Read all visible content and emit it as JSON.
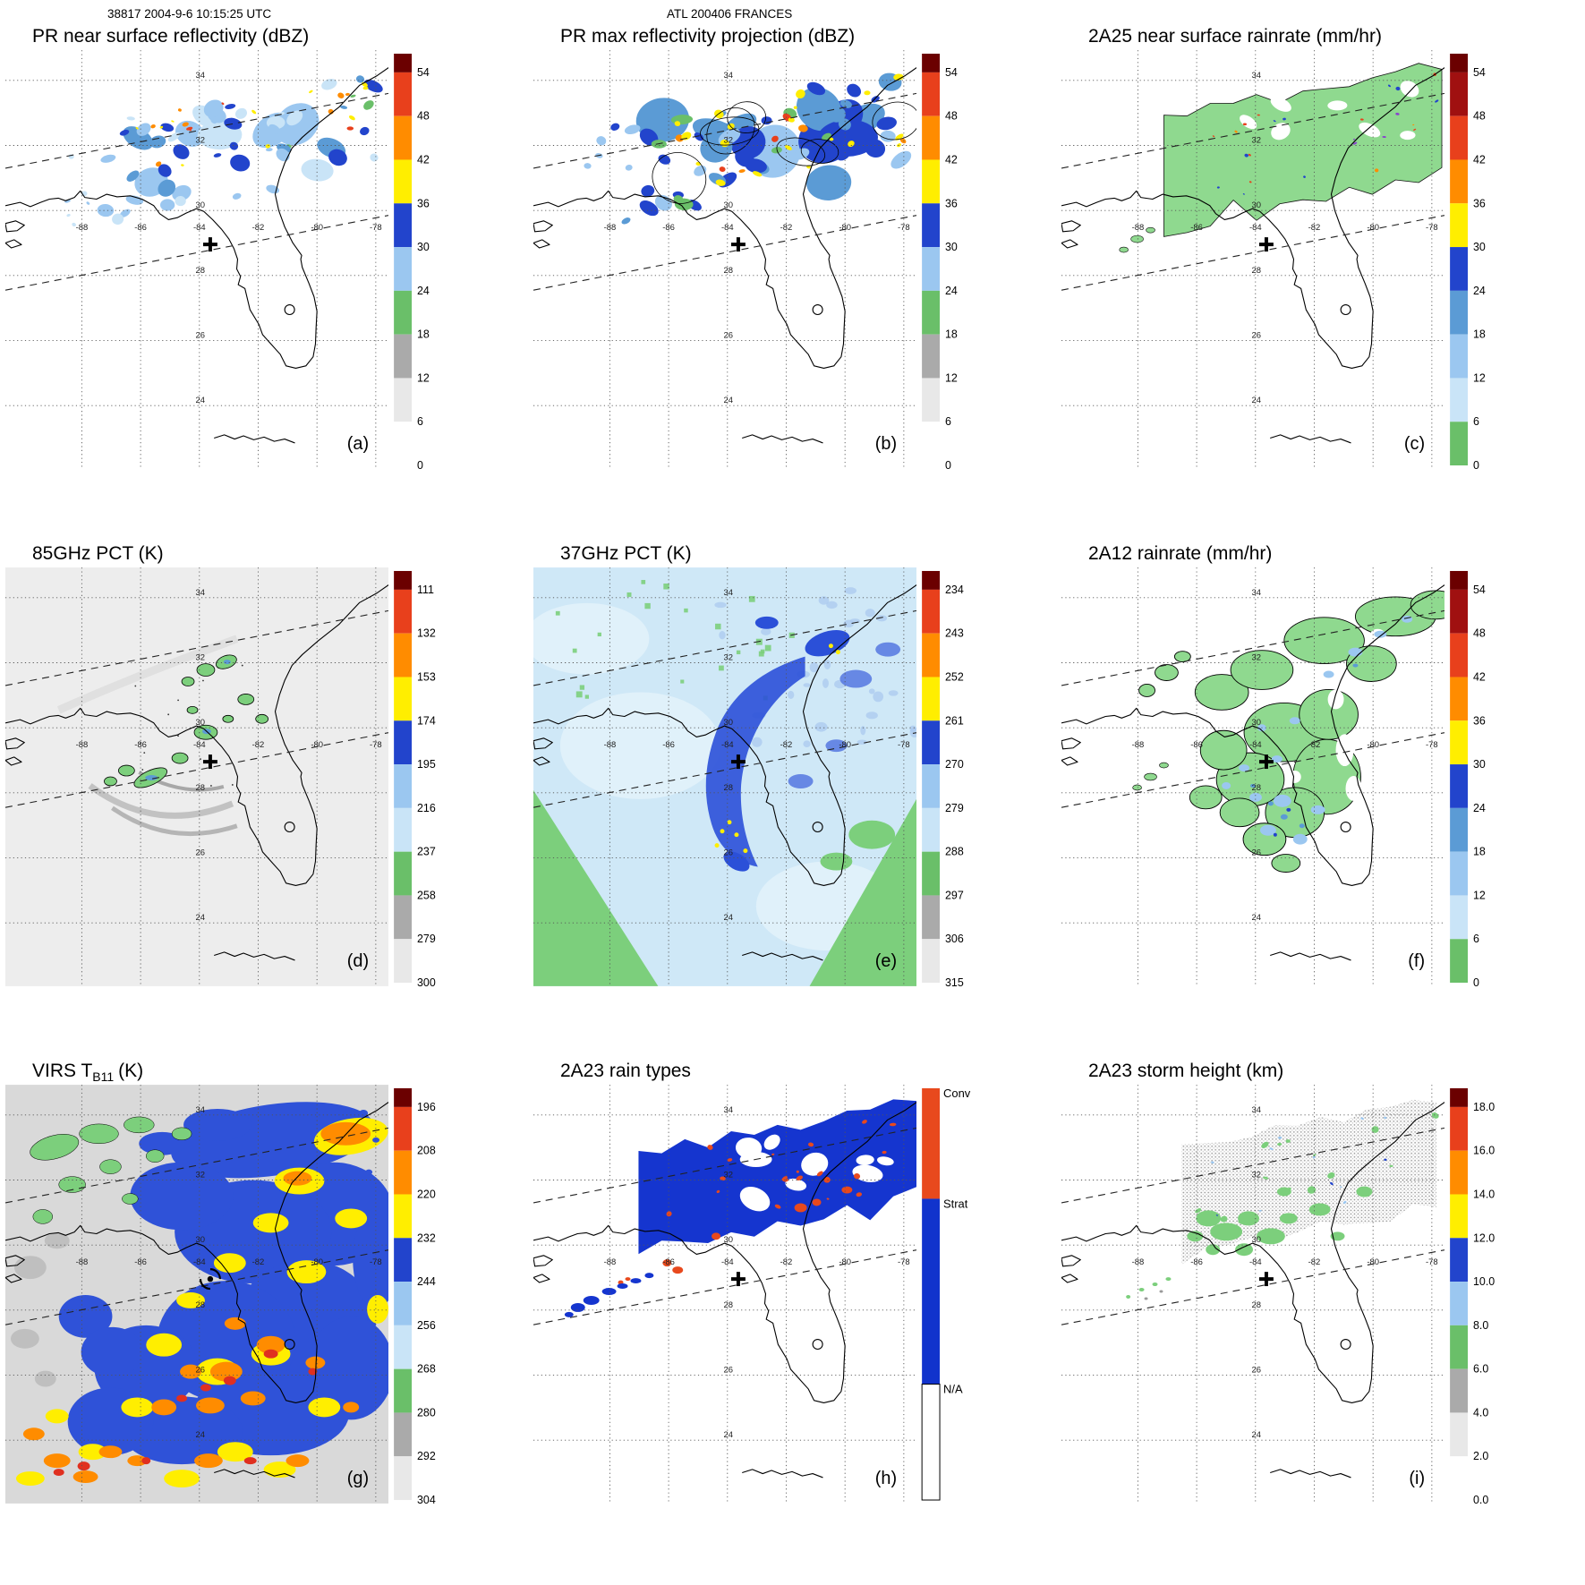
{
  "header": {
    "left": "38817 2004-9-6 10:15:25 UTC",
    "center": "ATL 200406 FRANCES"
  },
  "map": {
    "lon_ticks": [
      "-88",
      "-86",
      "-84",
      "-82",
      "-80",
      "-78"
    ],
    "lat_ticks": [
      "34",
      "32",
      "30",
      "28",
      "26",
      "24"
    ]
  },
  "palette": {
    "white": "#ffffff",
    "lgray": "#e8e8e8",
    "gray": "#aaaaaa",
    "dgray": "#9a9a9a",
    "green": "#6abf69",
    "green2": "#8fd98f",
    "ggreen": "#7ccf7c",
    "pblue": "#c9e4f7",
    "lblue": "#9bc7f0",
    "mblue": "#5b9bd5",
    "mblue2": "#5577e0",
    "blue": "#2244cc",
    "blue2": "#1535cf",
    "dkblue": "#2b50d8",
    "paleb": "#cfe8f7",
    "yellow": "#ffee00",
    "orange": "#ff8c00",
    "red": "#e8401c",
    "dred": "#6b0000",
    "red2": "#a01010",
    "conv": "#e8491d",
    "strat": "#1133cc",
    "purple": "#8844cc",
    "bg_pct85": "#ededed",
    "bg_virs": "#d9d9d9"
  },
  "panels": [
    {
      "id": "a",
      "title": "PR near surface reflectivity (dBZ)",
      "letter": "(a)",
      "colorbar": {
        "kind": "ticks",
        "cap": "#6b0000",
        "segments": [
          "#e8401c",
          "#ff8c00",
          "#ffee00",
          "#2244cc",
          "#9bc7f0",
          "#6abf69",
          "#aaaaaa",
          "#e8e8e8",
          "#ffffff"
        ],
        "ticks": [
          "54",
          "48",
          "42",
          "36",
          "30",
          "24",
          "18",
          "12",
          "6",
          "0"
        ]
      }
    },
    {
      "id": "b",
      "title": "PR max reflectivity projection (dBZ)",
      "letter": "(b)",
      "colorbar": {
        "kind": "ticks",
        "cap": "#6b0000",
        "segments": [
          "#e8401c",
          "#ff8c00",
          "#ffee00",
          "#2244cc",
          "#9bc7f0",
          "#6abf69",
          "#aaaaaa",
          "#e8e8e8",
          "#ffffff"
        ],
        "ticks": [
          "54",
          "48",
          "42",
          "36",
          "30",
          "24",
          "18",
          "12",
          "6",
          "0"
        ]
      }
    },
    {
      "id": "c",
      "title": "2A25 near surface rainrate (mm/hr)",
      "letter": "(c)",
      "colorbar": {
        "kind": "ticks",
        "cap": "#6b0000",
        "segments": [
          "#a01010",
          "#e8401c",
          "#ff8c00",
          "#ffee00",
          "#2244cc",
          "#5b9bd5",
          "#9bc7f0",
          "#c9e4f7",
          "#6abf69"
        ],
        "ticks": [
          "54",
          "48",
          "42",
          "36",
          "30",
          "24",
          "18",
          "12",
          "6",
          "0"
        ]
      }
    },
    {
      "id": "d",
      "title": "85GHz PCT (K)",
      "letter": "(d)",
      "colorbar": {
        "kind": "ticks",
        "cap": "#6b0000",
        "segments": [
          "#e8401c",
          "#ff8c00",
          "#ffee00",
          "#2244cc",
          "#9bc7f0",
          "#c9e4f7",
          "#6abf69",
          "#aaaaaa",
          "#e8e8e8"
        ],
        "ticks": [
          "111",
          "132",
          "153",
          "174",
          "195",
          "216",
          "237",
          "258",
          "279",
          "300"
        ]
      }
    },
    {
      "id": "e",
      "title": "37GHz PCT (K)",
      "letter": "(e)",
      "colorbar": {
        "kind": "ticks",
        "cap": "#6b0000",
        "segments": [
          "#e8401c",
          "#ff8c00",
          "#ffee00",
          "#2244cc",
          "#9bc7f0",
          "#c9e4f7",
          "#6abf69",
          "#aaaaaa",
          "#e8e8e8"
        ],
        "ticks": [
          "234",
          "243",
          "252",
          "261",
          "270",
          "279",
          "288",
          "297",
          "306",
          "315"
        ]
      }
    },
    {
      "id": "f",
      "title": "2A12 rainrate (mm/hr)",
      "letter": "(f)",
      "colorbar": {
        "kind": "ticks",
        "cap": "#6b0000",
        "segments": [
          "#a01010",
          "#e8401c",
          "#ff8c00",
          "#ffee00",
          "#2244cc",
          "#5b9bd5",
          "#9bc7f0",
          "#c9e4f7",
          "#6abf69"
        ],
        "ticks": [
          "54",
          "48",
          "42",
          "36",
          "30",
          "24",
          "18",
          "12",
          "6",
          "0"
        ]
      }
    },
    {
      "id": "g",
      "title": "VIRS T",
      "title_sub": "B11",
      "title_suffix": "(K)",
      "letter": "(g)",
      "colorbar": {
        "kind": "ticks",
        "cap": "#6b0000",
        "segments": [
          "#e8401c",
          "#ff8c00",
          "#ffee00",
          "#2244cc",
          "#9bc7f0",
          "#c9e4f7",
          "#6abf69",
          "#aaaaaa",
          "#e8e8e8"
        ],
        "ticks": [
          "196",
          "208",
          "220",
          "232",
          "244",
          "256",
          "268",
          "280",
          "292",
          "304"
        ]
      }
    },
    {
      "id": "h",
      "title": "2A23 rain types",
      "letter": "(h)",
      "colorbar": {
        "kind": "categories",
        "labels": [
          "Conv",
          "Strat",
          "N/A"
        ],
        "colors": [
          "#e8491d",
          "#1133cc",
          "#ffffff"
        ]
      }
    },
    {
      "id": "i",
      "title": "2A23 storm height (km)",
      "letter": "(i)",
      "colorbar": {
        "kind": "ticks",
        "cap": "#6b0000",
        "segments": [
          "#e8401c",
          "#ff8c00",
          "#ffee00",
          "#2244cc",
          "#9bc7f0",
          "#6abf69",
          "#aaaaaa",
          "#e8e8e8",
          "#ffffff"
        ],
        "ticks": [
          "18.0",
          "16.0",
          "14.0",
          "12.0",
          "10.0",
          "8.0",
          "6.0",
          "4.0",
          "2.0",
          "0.0"
        ]
      }
    }
  ],
  "chart_data": {
    "type": "heatmap",
    "title": "TRMM overpass 38817, 2004-9-6 10:15:25 UTC, ATL 200406 FRANCES",
    "layout": "3x3 multipanel geographic maps of Florida with vertical colorbars",
    "lon_ticks": [
      -88,
      -86,
      -84,
      -82,
      -80,
      -78
    ],
    "lat_ticks": [
      34,
      32,
      30,
      28,
      26,
      24
    ],
    "panels": [
      {
        "label": "(a)",
        "title": "PR near surface reflectivity (dBZ)",
        "colorbar_ticks": [
          54,
          48,
          42,
          36,
          30,
          24,
          18,
          12,
          6,
          0
        ],
        "units": "dBZ",
        "content": "scattered 20-40 dBZ echoes with embedded convective cores in a NE-tilted PR swath over north Florida / Georgia"
      },
      {
        "label": "(b)",
        "title": "PR max reflectivity projection (dBZ)",
        "colorbar_ticks": [
          54,
          48,
          42,
          36,
          30,
          24,
          18,
          12,
          6,
          0
        ],
        "units": "dBZ",
        "content": "denser echo coverage with many 36-54 dBZ cores in same swath"
      },
      {
        "label": "(c)",
        "title": "2A25 near surface rainrate (mm/hr)",
        "colorbar_ticks": [
          54,
          48,
          42,
          36,
          30,
          24,
          18,
          12,
          6,
          0
        ],
        "units": "mm/hr",
        "content": "mostly light rain (0-6 mm/hr, green) across swath with isolated heavy-rain pixels"
      },
      {
        "label": "(d)",
        "title": "85GHz PCT (K)",
        "colorbar_ticks": [
          111,
          132,
          153,
          174,
          195,
          216,
          237,
          258,
          279,
          300
        ],
        "units": "K",
        "content": "warm background 270-300 K with scattered 237-258 K (green) convective ice-scattering cells near storm center"
      },
      {
        "label": "(e)",
        "title": "37GHz PCT (K)",
        "colorbar_ticks": [
          234,
          243,
          252,
          261,
          270,
          279,
          288,
          297,
          306,
          315
        ],
        "units": "K",
        "content": "270-288 K field over ocean, 288-297 K (green) areas, 261-270 K (blue) spiral rainband, few 252-261 K pixels"
      },
      {
        "label": "(f)",
        "title": "2A12 rainrate (mm/hr)",
        "colorbar_ticks": [
          54,
          48,
          42,
          36,
          30,
          24,
          18,
          12,
          6,
          0
        ],
        "units": "mm/hr",
        "content": "broad light-rain (0-6 mm/hr) shield over central/north Florida with embedded 6-18 mm/hr patches"
      },
      {
        "label": "(g)",
        "title": "VIRS TB11 (K)",
        "colorbar_ticks": [
          196,
          208,
          220,
          232,
          244,
          256,
          268,
          280,
          292,
          304
        ],
        "units": "K",
        "content": "extensive cold cloud shield: 196-220 K (orange/red) deep convection south and east of center, 232-244 K (blue) anvil, warmer 268-304 K clear air northwest"
      },
      {
        "label": "(h)",
        "title": "2A23 rain types",
        "categories": [
          "Conv",
          "Strat",
          "N/A"
        ],
        "content": "predominantly stratiform (blue) swath with scattered convective (orange) pixels"
      },
      {
        "label": "(i)",
        "title": "2A23 storm height (km)",
        "colorbar_ticks": [
          18.0,
          16.0,
          14.0,
          12.0,
          10.0,
          8.0,
          6.0,
          4.0,
          2.0,
          0.0
        ],
        "units": "km",
        "content": "storm heights mostly 4-6 km (gray) and 6-8 km (green) across swath with isolated 8-12 km pixels"
      }
    ],
    "annotations": [
      "black plus marker at storm center near 83.6W 29.3N in all panels",
      "dashed lines mark PR swath edges",
      "Florida coastline, Lake Okeechobee and Cuba coast drawn in black"
    ]
  }
}
